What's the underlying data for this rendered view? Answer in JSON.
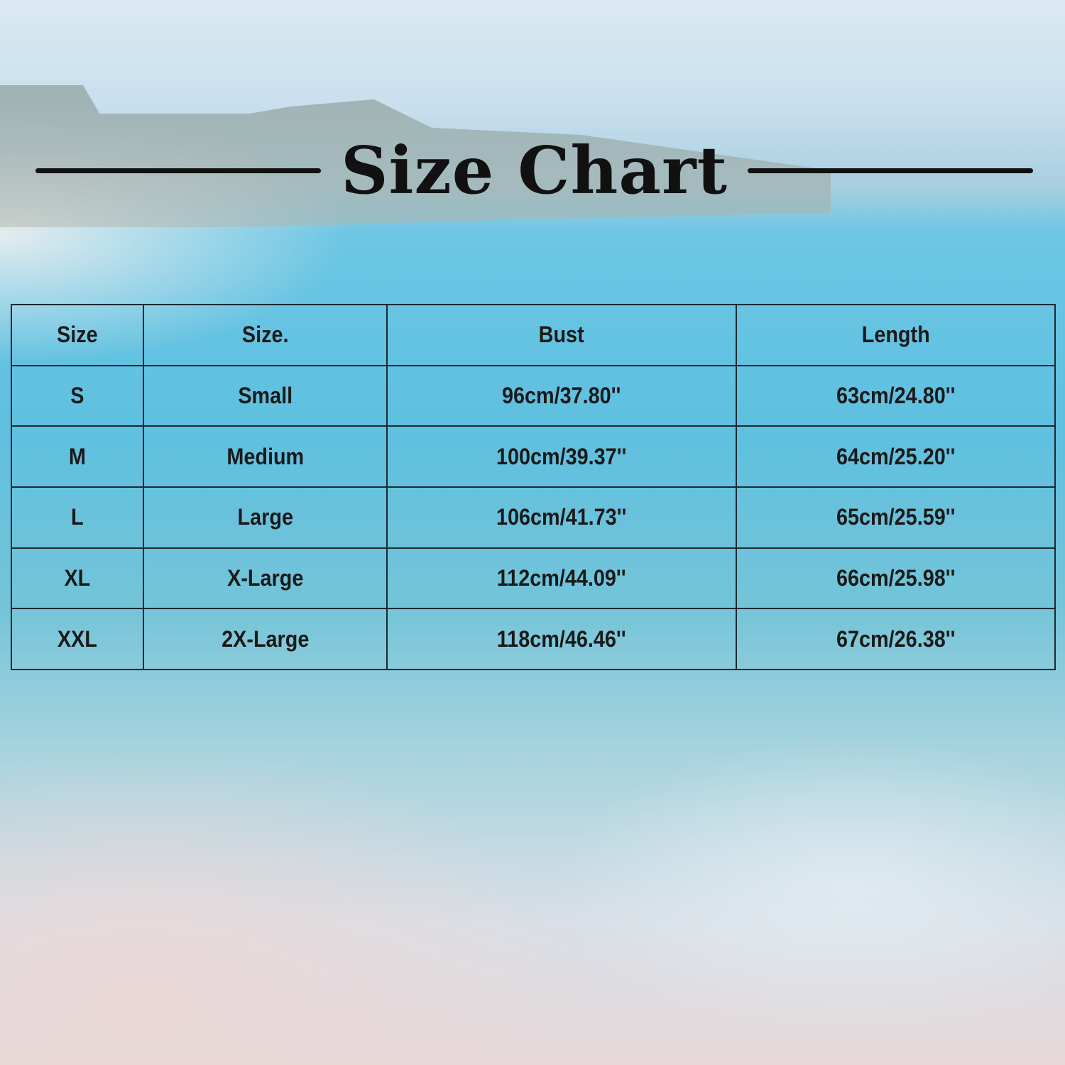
{
  "title": "Size Chart",
  "table": {
    "headers": [
      "Size",
      "Size.",
      "Bust",
      "Length"
    ],
    "rows": [
      [
        "S",
        "Small",
        "96cm/37.80''",
        "63cm/24.80''"
      ],
      [
        "M",
        "Medium",
        "100cm/39.37''",
        "64cm/25.20''"
      ],
      [
        "L",
        "Large",
        "106cm/41.73''",
        "65cm/25.59''"
      ],
      [
        "XL",
        "X-Large",
        "112cm/44.09''",
        "66cm/25.98''"
      ],
      [
        "XXL",
        "2X-Large",
        "118cm/46.46''",
        "67cm/26.38''"
      ]
    ]
  }
}
